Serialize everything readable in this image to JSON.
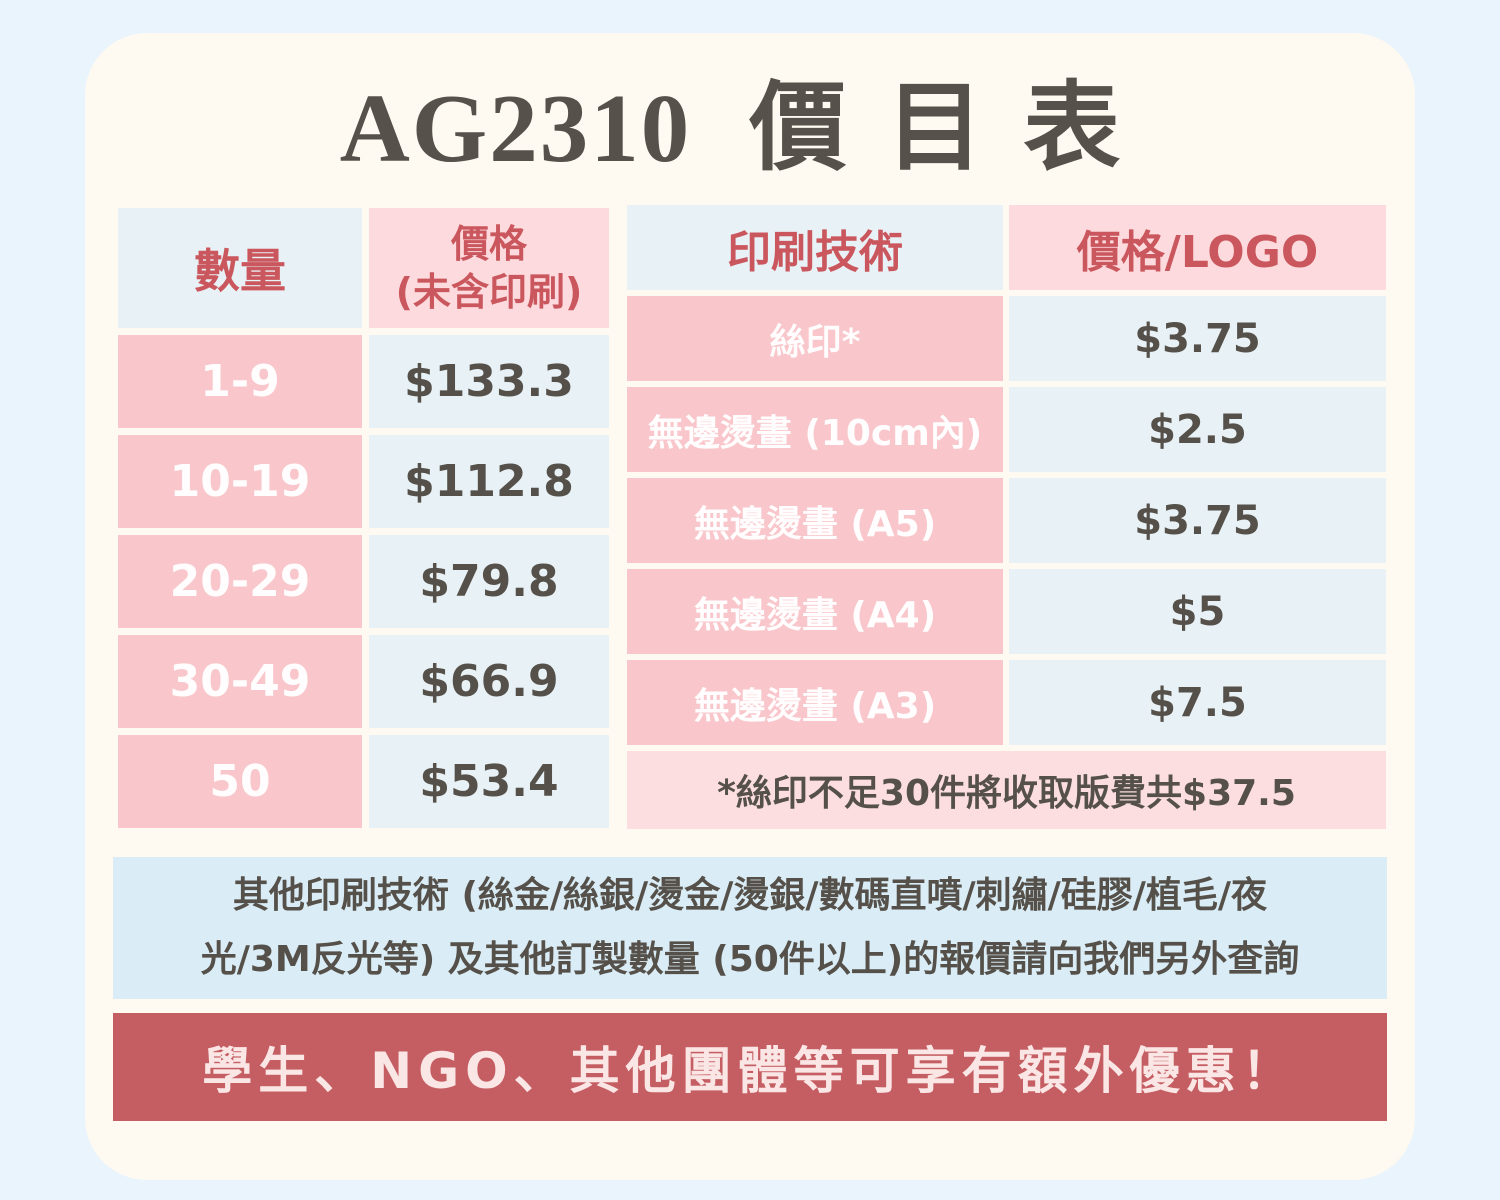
{
  "title": {
    "code": "AG2310",
    "label": "價目表"
  },
  "quantity_table": {
    "col1_header": "數量",
    "col2_header_line1": "價格",
    "col2_header_line2": "(未含印刷)",
    "rows": [
      {
        "qty": "1-9",
        "price": "$133.3"
      },
      {
        "qty": "10-19",
        "price": "$112.8"
      },
      {
        "qty": "20-29",
        "price": "$79.8"
      },
      {
        "qty": "30-49",
        "price": "$66.9"
      },
      {
        "qty": "50",
        "price": "$53.4"
      }
    ]
  },
  "printing_table": {
    "col1_header": "印刷技術",
    "col2_header": "價格/LOGO",
    "rows": [
      {
        "method": "絲印*",
        "price": "$3.75"
      },
      {
        "method": "無邊燙畫 (10cm內)",
        "price": "$2.5"
      },
      {
        "method": "無邊燙畫 (A5)",
        "price": "$3.75"
      },
      {
        "method": "無邊燙畫 (A4)",
        "price": "$5"
      },
      {
        "method": "無邊燙畫 (A3)",
        "price": "$7.5"
      }
    ],
    "footnote": "*絲印不足30件將收取版費共$37.5"
  },
  "note": {
    "line1": "其他印刷技術 (絲金/絲銀/燙金/燙銀/數碼直噴/刺繡/硅膠/植毛/夜",
    "line2": "光/3M反光等) 及其他訂製數量 (50件以上)的報價請向我們另外查詢"
  },
  "banner": {
    "text": "學生、NGO、其他團體等可享有額外優惠！"
  },
  "colors": {
    "page_bg": "#e9f4fc",
    "card_bg": "#fef9f1",
    "cell_blue": "#e8f1f5",
    "row_pink": "#f9c7cb",
    "header_pink": "#fcdadd",
    "footnote_pink": "#fcdee1",
    "note_blue": "#daecf5",
    "banner_red": "#c55e62",
    "heading_red": "#ca575d",
    "text_dark": "#55514a"
  }
}
